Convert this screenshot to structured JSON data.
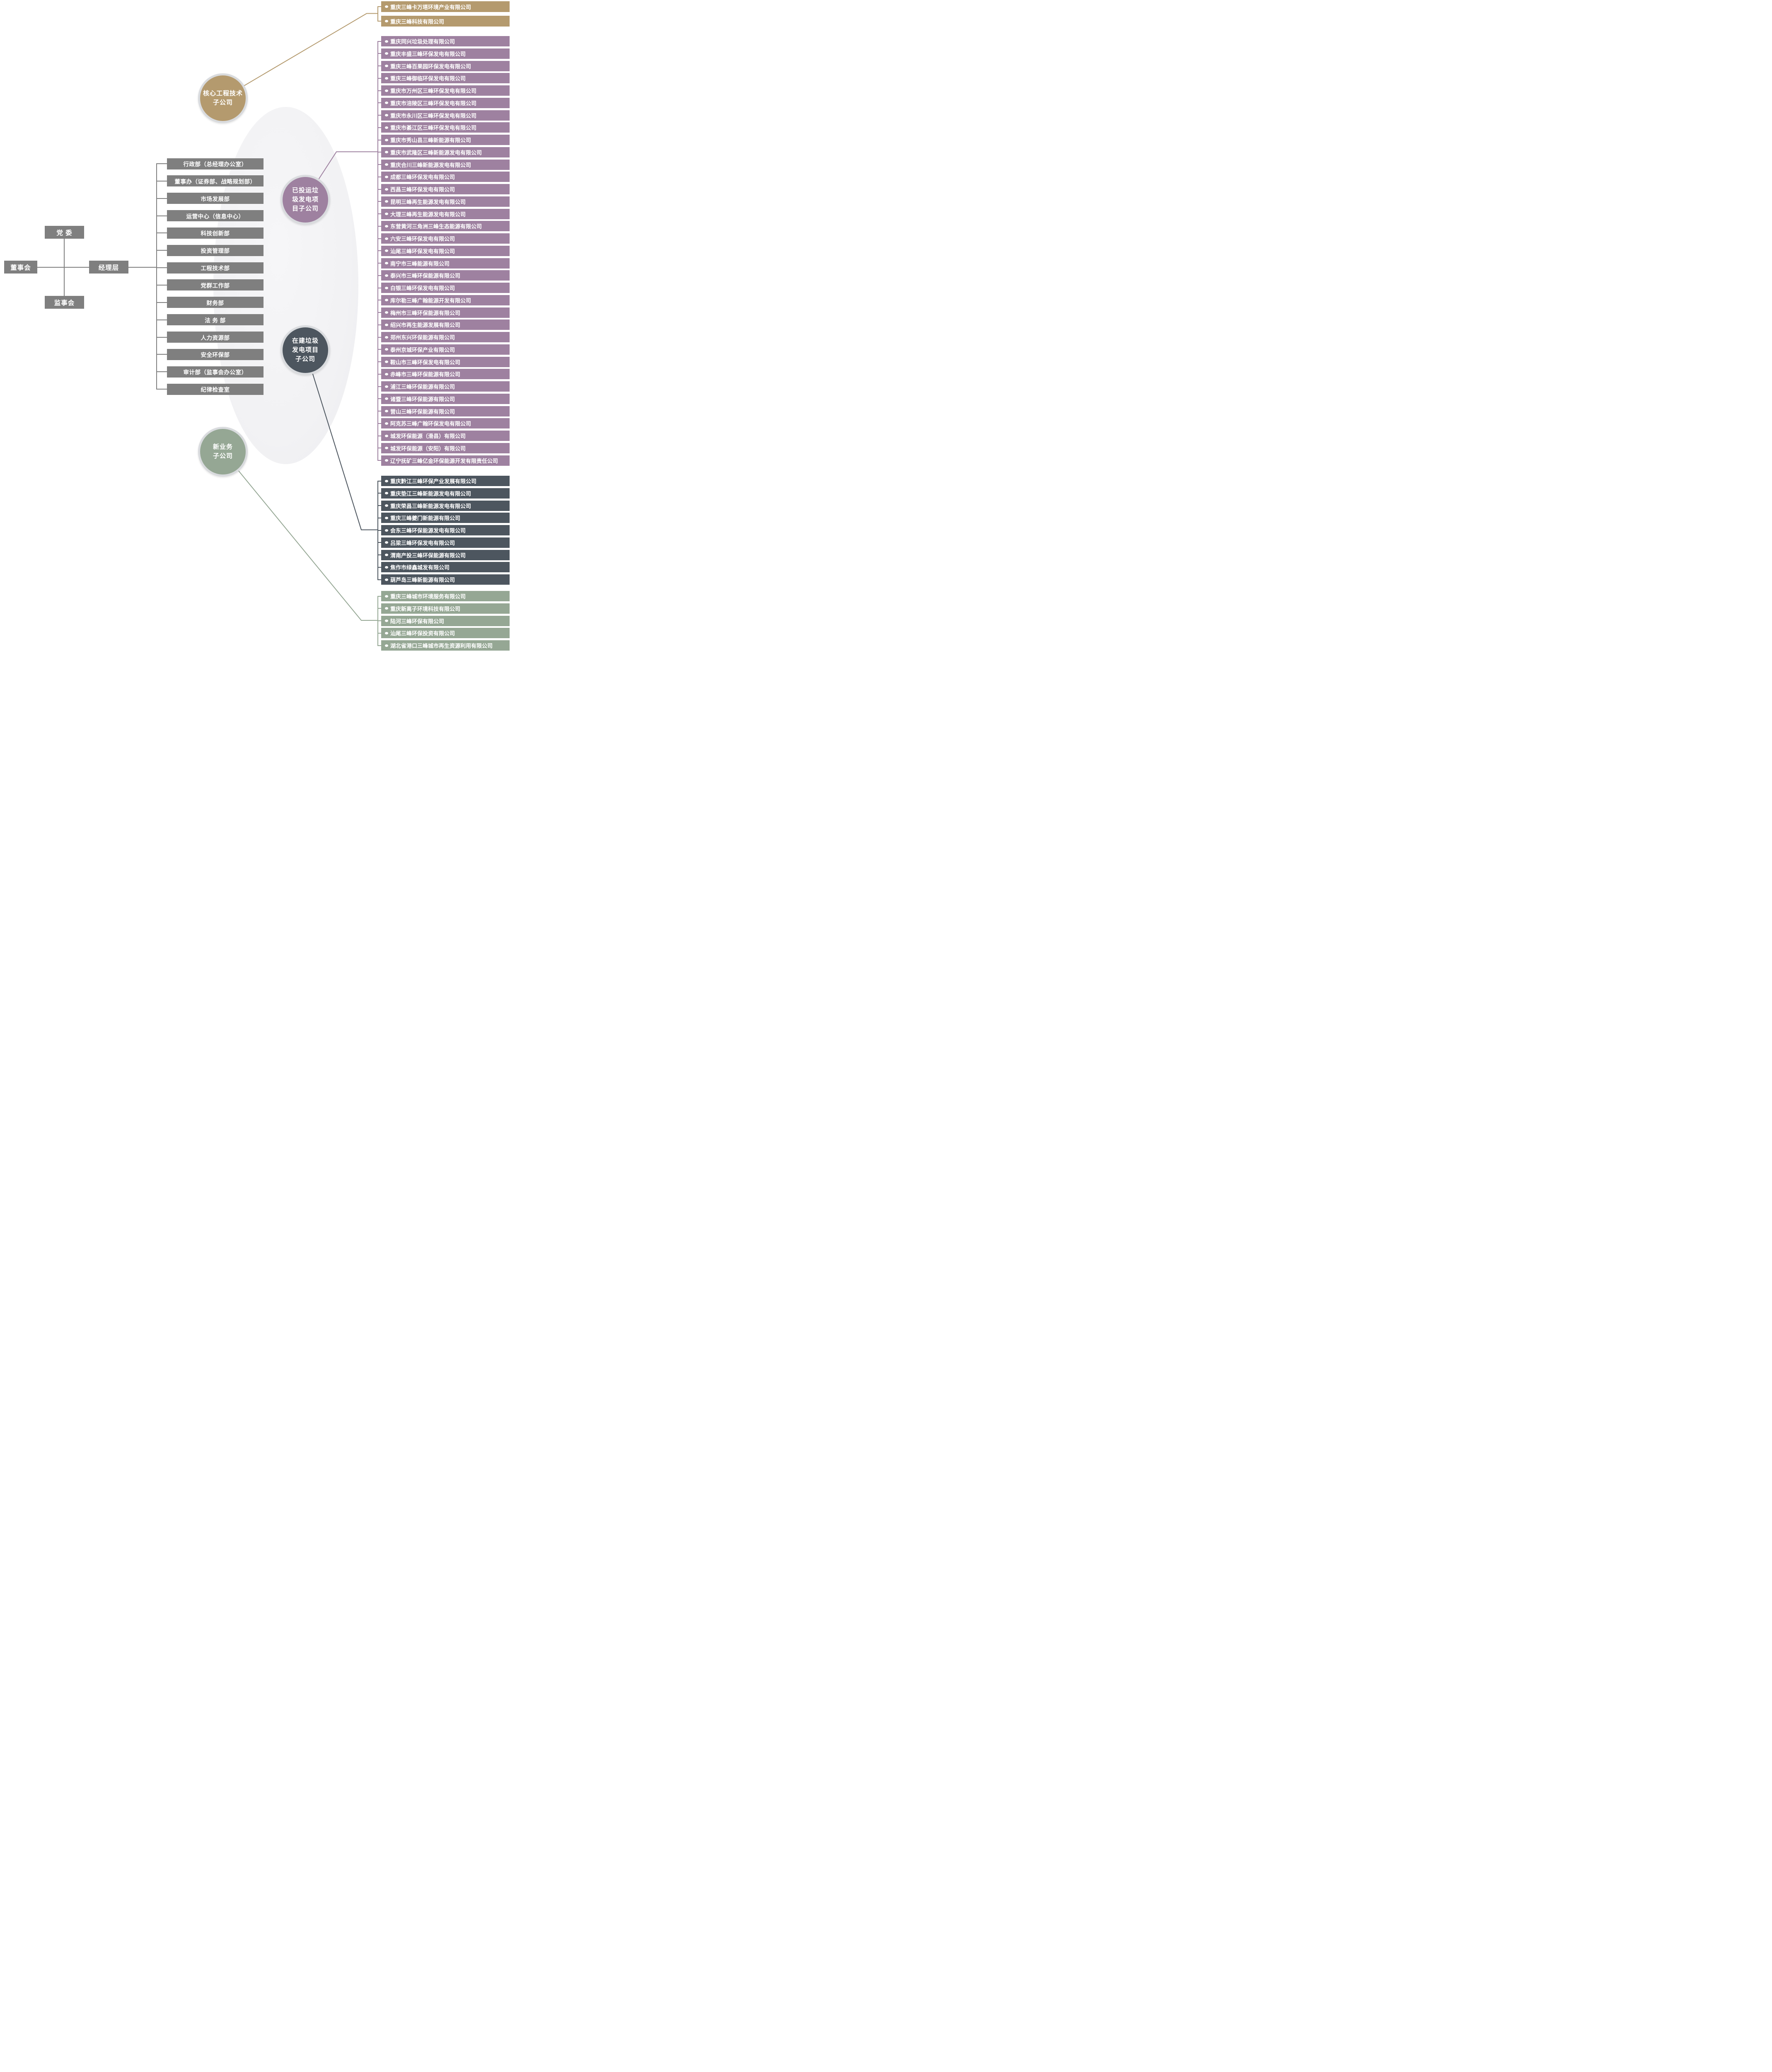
{
  "org": {
    "party_committee": "党 委",
    "board": "董事会",
    "management": "经理层",
    "supervisory": "监事会"
  },
  "departments": [
    "行政部（总经理办公室）",
    "董事办（证券部、战略规划部）",
    "市场发展部",
    "运营中心（信息中心）",
    "科技创新部",
    "投资管理部",
    "工程技术部",
    "党群工作部",
    "财务部",
    "法 务 部",
    "人力资源部",
    "安全环保部",
    "审计部（监事会办公室）",
    "纪律检查室"
  ],
  "groups": [
    {
      "id": "core-engineering",
      "label": "核心工程技术\n子公司",
      "color": "#b49a6e",
      "companies": [
        "重庆三峰卡万塔环境产业有限公司",
        "重庆三峰科技有限公司"
      ]
    },
    {
      "id": "operating-projects",
      "label": "已投运垃\n圾发电项\n目子公司",
      "color": "#9e81a0",
      "companies": [
        "重庆同兴垃圾处理有限公司",
        "重庆丰盛三峰环保发电有限公司",
        "重庆三峰百果园环保发电有限公司",
        "重庆三峰御临环保发电有限公司",
        "重庆市万州区三峰环保发电有限公司",
        "重庆市涪陵区三峰环保发电有限公司",
        "重庆市永川区三峰环保发电有限公司",
        "重庆市綦江区三峰环保发电有限公司",
        "重庆市秀山县三峰新能源有限公司",
        "重庆市武隆区三峰新能源发电有限公司",
        "重庆合川三峰新能源发电有限公司",
        "成都三峰环保发电有限公司",
        "西昌三峰环保发电有限公司",
        "昆明三峰再生能源发电有限公司",
        "大理三峰再生能源发电有限公司",
        "东营黄河三角洲三峰生态能源有限公司",
        "六安三峰环保发电有限公司",
        "汕尾三峰环保发电有限公司",
        "南宁市三峰能源有限公司",
        "泰兴市三峰环保能源有限公司",
        "白银三峰环保发电有限公司",
        "库尔勒三峰广翰能源开发有限公司",
        "梅州市三峰环保能源有限公司",
        "绍兴市再生能源发展有限公司",
        "郑州东兴环保能源有限公司",
        "泰州京城环保产业有限公司",
        "鞍山市三峰环保发电有限公司",
        "赤峰市三峰环保能源有限公司",
        "浦江三峰环保能源有限公司",
        "诸暨三峰环保能源有限公司",
        "营山三峰环保能源有限公司",
        "阿克苏三峰广翰环保发电有限公司",
        "城发环保能源（滑县）有限公司",
        "城发环保能源（安阳）有限公司",
        "辽宁抚矿三峰亿金环保能源开发有限责任公司"
      ]
    },
    {
      "id": "under-construction-projects",
      "label": "在建垃圾\n发电项目\n子公司",
      "color": "#4d565f",
      "companies": [
        "重庆黔江三峰环保产业发展有限公司",
        "重庆垫江三峰新能源发电有限公司",
        "重庆荣昌三峰新能源发电有限公司",
        "重庆三峰夔门新能源有限公司",
        "会东三峰环保能源发电有限公司",
        "吕梁三峰环保发电有限公司",
        "渭南产投三峰环保能源有限公司",
        "焦作市绿鑫城发有限公司",
        "葫芦岛三峰新能源有限公司"
      ]
    },
    {
      "id": "new-business",
      "label": "新业务\n子公司",
      "color": "#95a794",
      "companies": [
        "重庆三峰城市环境服务有限公司",
        "重庆新离子环境科技有限公司",
        "陆河三峰环保有限公司",
        "汕尾三峰环保投资有限公司",
        "湖北省港口三峰城市再生资源利用有限公司"
      ]
    }
  ],
  "colors": {
    "structure_gray": "#7f7f7f",
    "bullet": "#ffffff",
    "background": "#ffffff",
    "watermark": "#f2f2f4",
    "circle_ring": "#d9dbde"
  }
}
